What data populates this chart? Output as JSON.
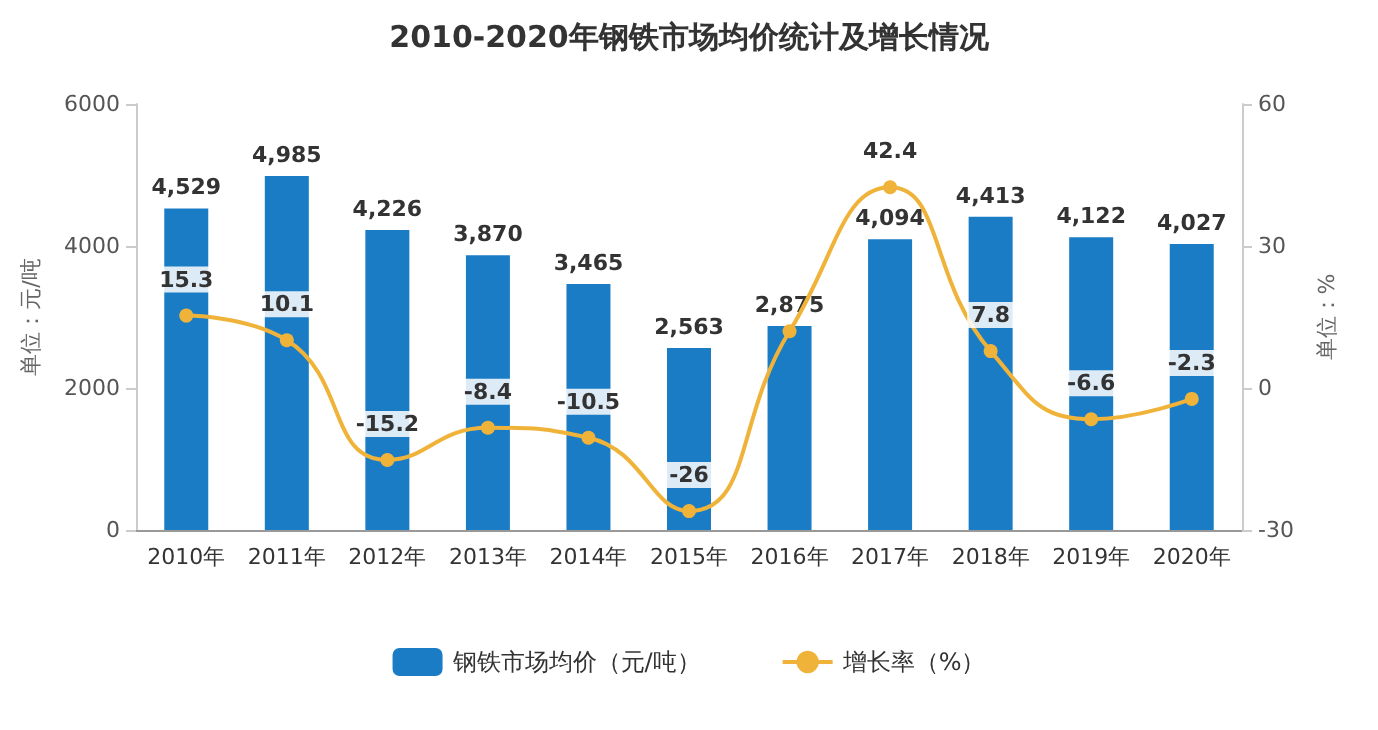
{
  "chart_data": {
    "type": "bar",
    "title": "2010-2020年钢铁市场均价统计及增长情况",
    "categories": [
      "2010年",
      "2011年",
      "2012年",
      "2013年",
      "2014年",
      "2015年",
      "2016年",
      "2017年",
      "2018年",
      "2019年",
      "2020年"
    ],
    "series": [
      {
        "name": "钢铁市场均价（元/吨）",
        "color": "#1b7cc6",
        "values": [
          4529,
          4985,
          4226,
          3870,
          3465,
          2563,
          2875,
          4094,
          4413,
          4122,
          4027
        ],
        "value_labels": [
          "4,529",
          "4,985",
          "4,226",
          "3,870",
          "3,465",
          "2,563",
          "2,875",
          "4,094",
          "4,413",
          "4,122",
          "4,027"
        ]
      },
      {
        "name": "增长率（%）",
        "type": "line",
        "axis": "y2",
        "color": "#f0b33a",
        "marker": "circle",
        "values": [
          15.3,
          10.1,
          -15.2,
          -8.4,
          -10.5,
          -26,
          12,
          42.4,
          7.8,
          -6.6,
          -2.3
        ],
        "value_labels": [
          "15.3",
          "10.1",
          "-15.2",
          "-8.4",
          "-10.5",
          "-26",
          null,
          "42.4",
          "7.8",
          "-6.6",
          "-2.3"
        ]
      }
    ],
    "ylabel": "单位：元/吨",
    "y2label": "单位：%",
    "ylim": [
      0,
      6000
    ],
    "yticks": [
      0,
      2000,
      4000,
      6000
    ],
    "y2lim": [
      -30,
      60
    ],
    "y2ticks": [
      -30,
      0,
      30,
      60
    ],
    "legend": "bottom"
  }
}
